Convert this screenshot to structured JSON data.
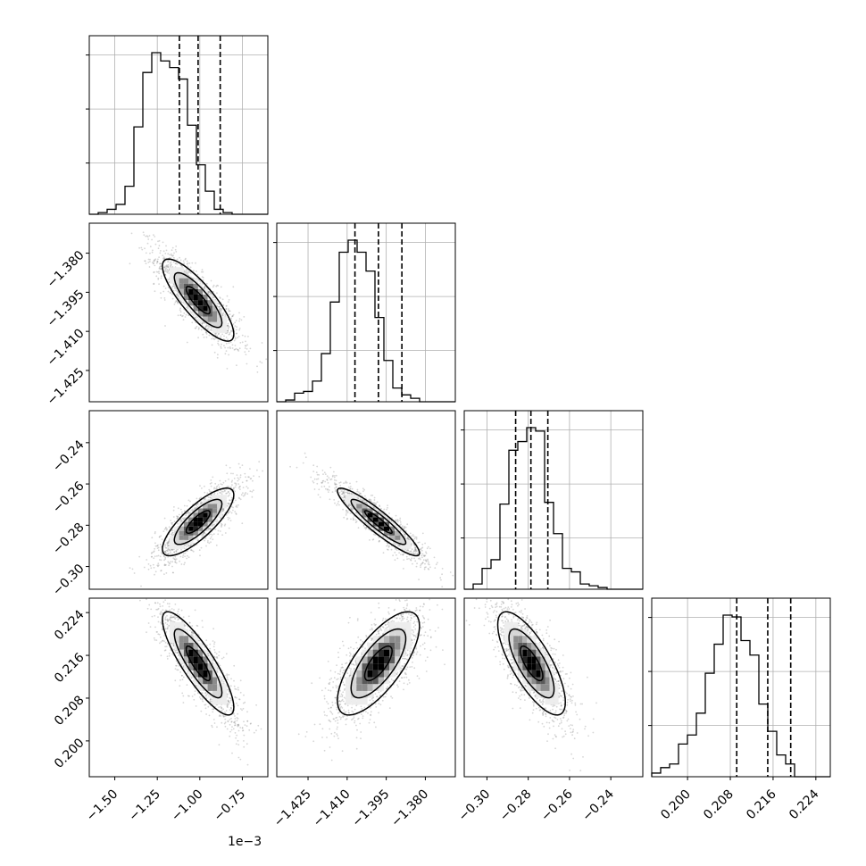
{
  "chart_data": {
    "type": "corner",
    "params": [
      {
        "range": [
          -1.65,
          -0.6
        ],
        "ticks": [
          -1.5,
          -1.25,
          -1.0,
          -0.75
        ],
        "tick_labels": [
          "−1.50",
          "−1.25",
          "−1.00",
          "−0.75"
        ],
        "offset": "1e−3",
        "quantiles": [
          -1.12,
          -1.01,
          -0.88
        ],
        "mean": -1.01,
        "sd": 0.1
      },
      {
        "range": [
          -1.437,
          -1.3685
        ],
        "ticks": [
          -1.425,
          -1.41,
          -1.395,
          -1.38
        ],
        "tick_labels": [
          "−1.425",
          "−1.410",
          "−1.395",
          "−1.380"
        ],
        "quantiles": [
          -1.407,
          -1.398,
          -1.389
        ],
        "mean": -1.398,
        "sd": 0.0075
      },
      {
        "range": [
          -0.311,
          -0.2245
        ],
        "ticks": [
          -0.3,
          -0.28,
          -0.26,
          -0.24
        ],
        "tick_labels": [
          "−0.30",
          "−0.28",
          "−0.26",
          "−0.24"
        ],
        "quantiles": [
          -0.2861,
          -0.2787,
          -0.2705
        ],
        "mean": -0.2784,
        "sd": 0.0078
      },
      {
        "range": [
          0.1933,
          0.2267
        ],
        "ticks": [
          0.2,
          0.208,
          0.216,
          0.224
        ],
        "tick_labels": [
          "0.200",
          "0.208",
          "0.216",
          "0.224"
        ],
        "quantiles": [
          0.2092,
          0.215,
          0.2193
        ],
        "mean": 0.2145,
        "sd": 0.0046
      }
    ],
    "histograms": [
      {
        "bins": 20,
        "counts": [
          0.0,
          0.01,
          0.03,
          0.06,
          0.17,
          0.53,
          0.86,
          0.98,
          0.93,
          0.89,
          0.82,
          0.54,
          0.3,
          0.14,
          0.03,
          0.01,
          0.0,
          0.0,
          0.0,
          0.0
        ]
      },
      {
        "bins": 20,
        "counts": [
          0.0,
          0.01,
          0.05,
          0.06,
          0.12,
          0.28,
          0.58,
          0.87,
          0.94,
          0.87,
          0.76,
          0.49,
          0.24,
          0.08,
          0.04,
          0.02,
          0.0,
          0.0,
          0.0,
          0.0
        ]
      },
      {
        "bins": 20,
        "counts": [
          0.0,
          0.03,
          0.12,
          0.17,
          0.49,
          0.8,
          0.85,
          0.93,
          0.91,
          0.5,
          0.32,
          0.12,
          0.1,
          0.03,
          0.02,
          0.01,
          0.0,
          0.0,
          0.0,
          0.0
        ]
      },
      {
        "bins": 20,
        "counts": [
          0.02,
          0.05,
          0.07,
          0.18,
          0.23,
          0.35,
          0.57,
          0.73,
          0.89,
          0.88,
          0.75,
          0.67,
          0.4,
          0.25,
          0.12,
          0.07,
          0.0,
          0.0,
          0.0,
          0.0
        ]
      }
    ],
    "correlations": [
      [
        1,
        -0.83,
        0.8,
        -0.85
      ],
      [
        -0.83,
        1,
        -0.92,
        0.72
      ],
      [
        0.8,
        -0.92,
        1,
        -0.75
      ],
      [
        -0.85,
        0.72,
        -0.75,
        1
      ]
    ],
    "contour_levels_sigma": [
      0.5,
      1.0,
      1.5
    ],
    "grid": true
  }
}
